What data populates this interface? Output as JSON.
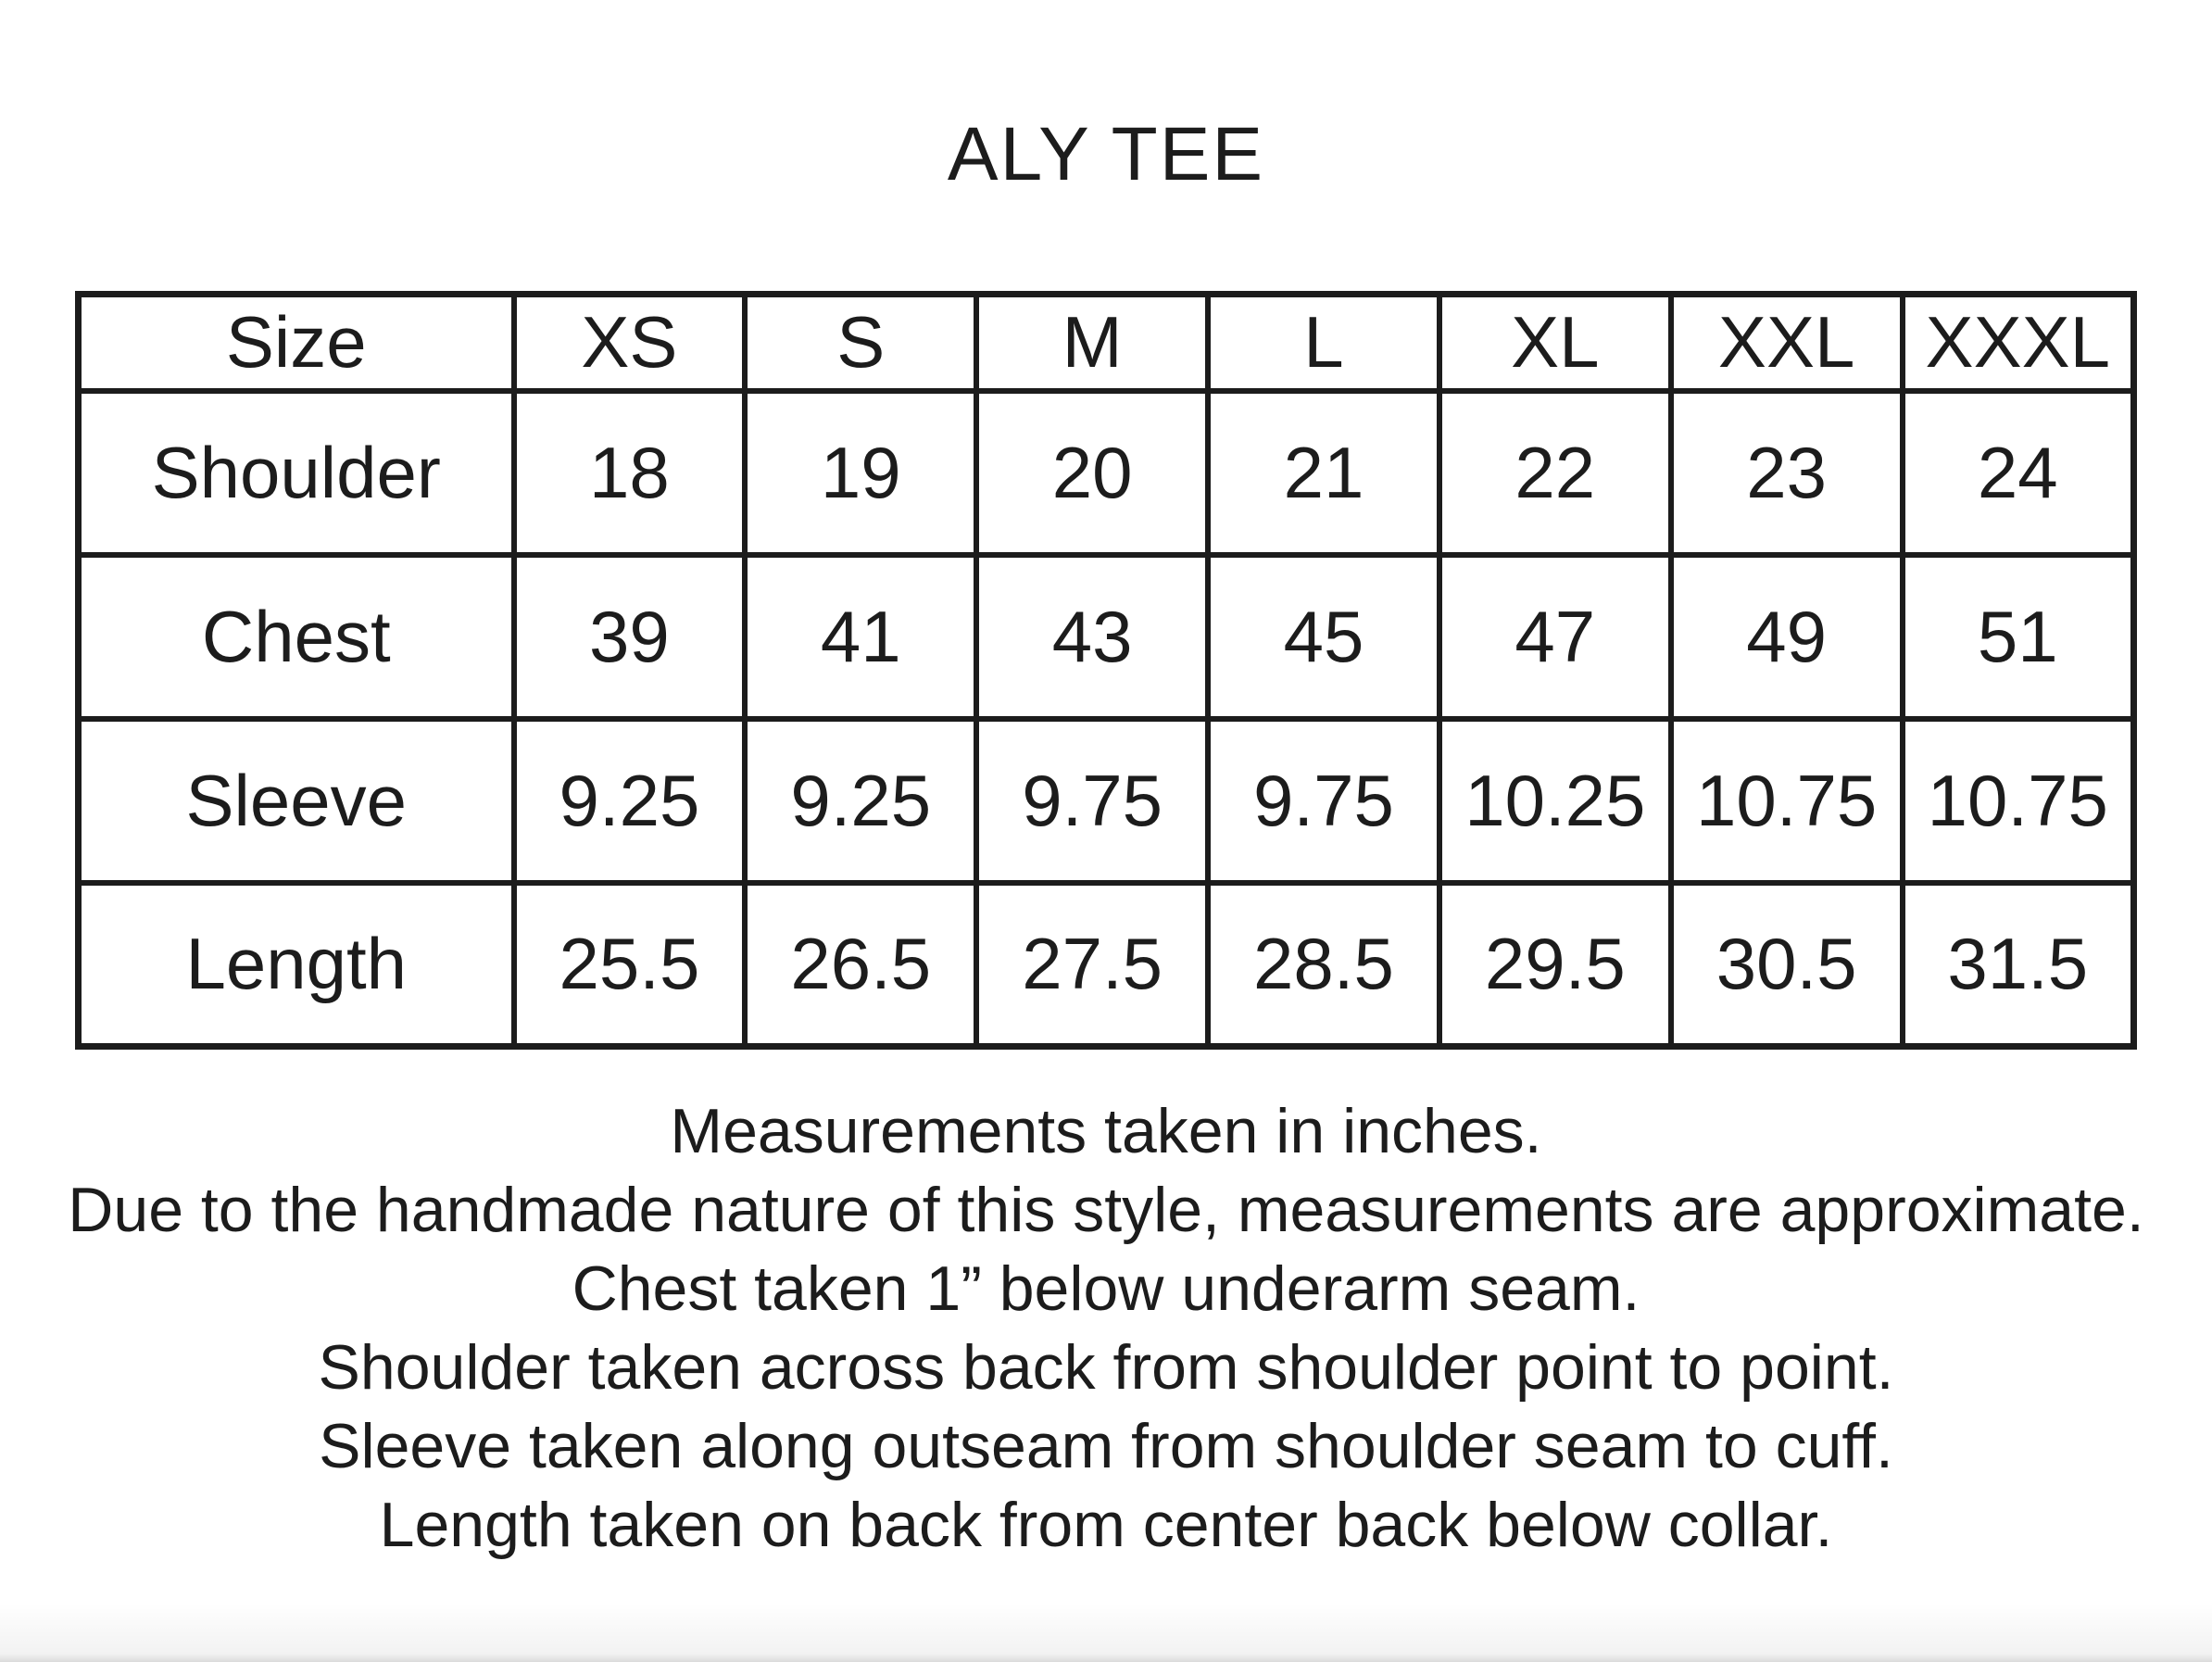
{
  "title": "ALY TEE",
  "table": {
    "columns": [
      "Size",
      "XS",
      "S",
      "M",
      "L",
      "XL",
      "XXL",
      "XXXL"
    ],
    "rows": [
      {
        "label": "Shoulder",
        "values": [
          "18",
          "19",
          "20",
          "21",
          "22",
          "23",
          "24"
        ]
      },
      {
        "label": "Chest",
        "values": [
          "39",
          "41",
          "43",
          "45",
          "47",
          "49",
          "51"
        ]
      },
      {
        "label": "Sleeve",
        "values": [
          "9.25",
          "9.25",
          "9.75",
          "9.75",
          "10.25",
          "10.75",
          "10.75"
        ]
      },
      {
        "label": "Length",
        "values": [
          "25.5",
          "26.5",
          "27.5",
          "28.5",
          "29.5",
          "30.5",
          "31.5"
        ]
      }
    ]
  },
  "notes": [
    "Measurements taken in inches.",
    "Due to the handmade nature of this style, measurements are approximate.",
    "Chest taken 1” below underarm seam.",
    "Shoulder taken across back from shoulder point to point.",
    "Sleeve taken along outseam from shoulder seam to cuff.",
    "Length taken on back from center back below collar."
  ],
  "colors": {
    "text": "#1c1c1c",
    "border": "#1c1c1c",
    "background": "#ffffff"
  }
}
